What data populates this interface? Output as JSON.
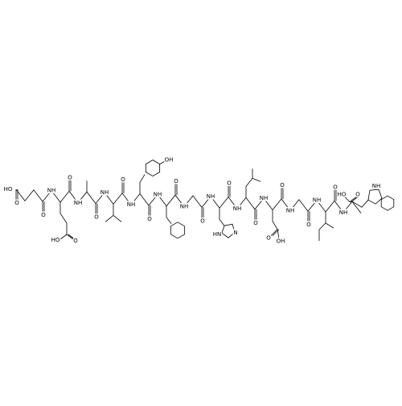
{
  "molecule": {
    "succinyl_labels": [
      "HO",
      "O",
      "O"
    ],
    "amide_nh": [
      "NH",
      "NH",
      "NH",
      "NH",
      "NH",
      "NH",
      "NH",
      "NH",
      "NH",
      "NH",
      "NH",
      "NH"
    ],
    "carbonyl_o": [
      "O",
      "O",
      "O",
      "O",
      "O",
      "O",
      "O",
      "O",
      "O",
      "O",
      "O"
    ],
    "side_chain_labels": [
      "HO",
      "O",
      "OH",
      "HN",
      "N",
      "O",
      "OH"
    ],
    "c_terminus": [
      "HO",
      "O"
    ],
    "indole_nh": "NH"
  }
}
